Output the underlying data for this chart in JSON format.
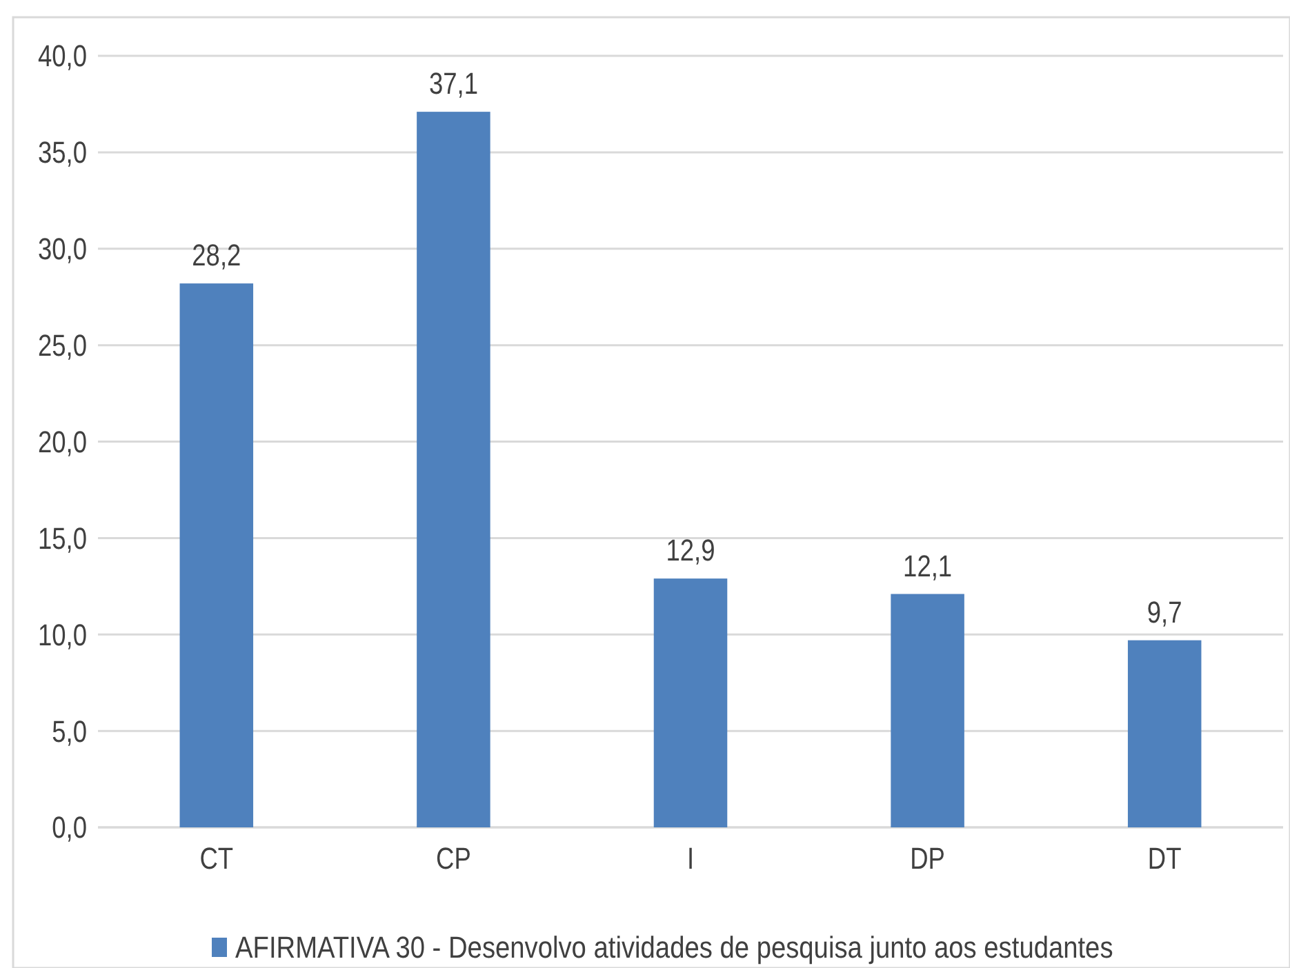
{
  "chart_data": {
    "type": "bar",
    "categories": [
      "CT",
      "CP",
      "I",
      "DP",
      "DT"
    ],
    "series": [
      {
        "name": "AFIRMATIVA 30 - Desenvolvo atividades de pesquisa junto aos estudantes",
        "color": "#4f81bd",
        "values": [
          28.2,
          37.1,
          12.9,
          12.1,
          9.7
        ],
        "value_labels": [
          "28,2",
          "37,1",
          "12,9",
          "12,1",
          "9,7"
        ]
      }
    ],
    "ylim": [
      0,
      40
    ],
    "yticks": [
      {
        "value": 0,
        "label": "0,0"
      },
      {
        "value": 5,
        "label": "5,0"
      },
      {
        "value": 10,
        "label": "10,0"
      },
      {
        "value": 15,
        "label": "15,0"
      },
      {
        "value": 20,
        "label": "20,0"
      },
      {
        "value": 25,
        "label": "25,0"
      },
      {
        "value": 30,
        "label": "30,0"
      },
      {
        "value": 35,
        "label": "35,0"
      },
      {
        "value": 40,
        "label": "40,0"
      }
    ],
    "grid": "y",
    "legend": "bottom"
  }
}
